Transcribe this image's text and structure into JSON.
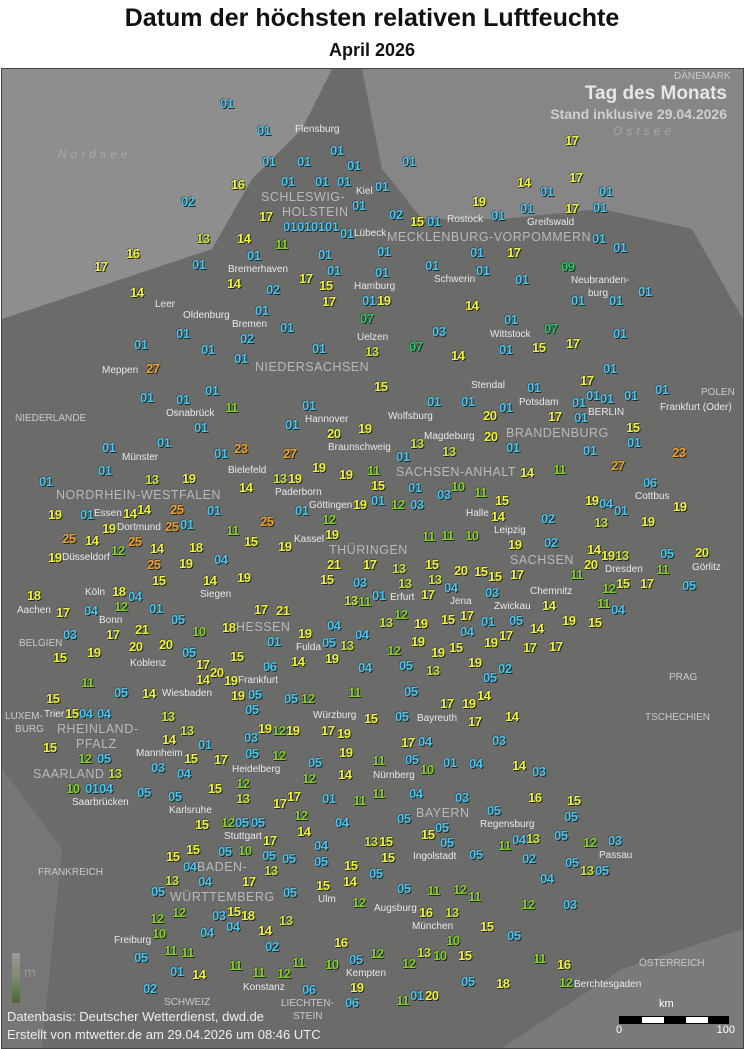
{
  "title": "Datum der höchsten relativen Luftfeuchte",
  "subtitle": "April 2026",
  "legend": {
    "title": "Tag des Monats",
    "subtitle": "Stand inklusive 29.04.2026"
  },
  "colors": {
    "days_01_06": "#4cc4f2",
    "days_07_09": "#2ec86a",
    "days_10_12": "#86cf2a",
    "day_13": "#cde23c",
    "days_14_21": "#f3f23a",
    "days_23_27": "#f0a032"
  },
  "sea_labels": [
    "Nordsee",
    "Ostsee"
  ],
  "regions": [
    "SCHLESWIG-",
    "HOLSTEIN",
    "MECKLENBURG-VORPOMMERN",
    "NIEDERSACHSEN",
    "BRANDENBURG",
    "SACHSEN-ANHALT",
    "NORDRHEIN-WESTFALEN",
    "THÜRINGEN",
    "SACHSEN",
    "HESSEN",
    "RHEINLAND-",
    "PFALZ",
    "SAARLAND",
    "BAYERN",
    "BADEN-",
    "WÜRTTEMBERG"
  ],
  "countries": [
    "DÄNEMARK",
    "POLEN",
    "NIEDERLANDE",
    "BELGIEN",
    "LUXEM-",
    "BURG",
    "FRANKREICH",
    "TSCHECHIEN",
    "PRAG",
    "ÖSTERREICH",
    "SCHWEIZ",
    "LIECHTEN-",
    "STEIN"
  ],
  "cities": [
    "Flensburg",
    "Kiel",
    "Lübeck",
    "Rostock",
    "Greifswald",
    "Schwerin",
    "Neubranden-",
    "burg",
    "Hamburg",
    "Bremerhaven",
    "Bremen",
    "Oldenburg",
    "Leer",
    "Meppen",
    "Uelzen",
    "Wittstock",
    "Stendal",
    "Potsdam",
    "BERLIN",
    "Frankfurt (Oder)",
    "Wolfsburg",
    "Osnabrück",
    "Hannover",
    "Braunschweig",
    "Magdeburg",
    "Münster",
    "Bielefeld",
    "Paderborn",
    "Göttingen",
    "Essen",
    "Dortmund",
    "Düsseldorf",
    "Kassel",
    "Halle",
    "Leipzig",
    "Cottbus",
    "Dresden",
    "Görlitz",
    "Köln",
    "Aachen",
    "Bonn",
    "Siegen",
    "Erfurt",
    "Jena",
    "Zwickau",
    "Chemnitz",
    "Fulda",
    "Koblenz",
    "Wiesbaden",
    "Frankfurt",
    "Trier",
    "Würzburg",
    "Bayreuth",
    "Mannheim",
    "Heidelberg",
    "Nürnberg",
    "Saarbrücken",
    "Karlsruhe",
    "Regensburg",
    "Stuttgart",
    "Ingolstadt",
    "Passau",
    "Ulm",
    "Augsburg",
    "München",
    "Freiburg",
    "Kempten",
    "Konstanz",
    "Berchtesgaden"
  ],
  "stations": [
    "01",
    "01",
    "17",
    "01",
    "01",
    "01",
    "01",
    "01",
    "17",
    "14",
    "16",
    "01",
    "01",
    "01",
    "01",
    "01",
    "01",
    "01",
    "02",
    "19",
    "01",
    "17",
    "01",
    "17",
    "01",
    "01",
    "01",
    "01",
    "02",
    "01",
    "01",
    "15",
    "01",
    "01",
    "13",
    "14",
    "01",
    "11",
    "01",
    "01",
    "17",
    "16",
    "17",
    "01",
    "01",
    "01",
    "01",
    "17",
    "01",
    "09",
    "01",
    "01",
    "14",
    "17",
    "01",
    "02",
    "15",
    "14",
    "19",
    "01",
    "01",
    "01",
    "01",
    "14",
    "01",
    "07",
    "01",
    "01",
    "07",
    "01",
    "02",
    "01",
    "03",
    "01",
    "01",
    "01",
    "07",
    "13",
    "01",
    "15",
    "17",
    "14",
    "01",
    "27",
    "01",
    "17",
    "15",
    "01",
    "01",
    "01",
    "01",
    "01",
    "01",
    "01",
    "01",
    "11",
    "01",
    "01",
    "01",
    "01",
    "01",
    "20",
    "17",
    "01",
    "01",
    "01",
    "20",
    "19",
    "20",
    "15",
    "01",
    "23",
    "13",
    "13",
    "01",
    "01",
    "01",
    "01",
    "01",
    "27",
    "23",
    "01",
    "19",
    "19",
    "27",
    "01",
    "14",
    "11",
    "11",
    "13",
    "19",
    "19",
    "01",
    "06",
    "15",
    "01",
    "13",
    "14",
    "01",
    "03",
    "11",
    "15",
    "10",
    "19",
    "01",
    "25",
    "12",
    "03",
    "19",
    "01",
    "01",
    "19",
    "19",
    "01",
    "14",
    "14",
    "25",
    "12",
    "19",
    "19",
    "11",
    "14",
    "02",
    "15",
    "19",
    "25",
    "25",
    "14",
    "19",
    "11",
    "11",
    "10",
    "12",
    "14",
    "18",
    "25",
    "01",
    "19",
    "04",
    "19",
    "02",
    "21",
    "17",
    "19",
    "25",
    "20",
    "11",
    "19",
    "15",
    "15",
    "15",
    "20",
    "17",
    "15",
    "15",
    "03",
    "13",
    "13",
    "15",
    "13",
    "17",
    "04",
    "01",
    "13",
    "11",
    "03",
    "14",
    "12",
    "04",
    "04",
    "18",
    "18",
    "14",
    "17",
    "04",
    "12",
    "01",
    "05",
    "17",
    "21",
    "10",
    "18",
    "03",
    "17",
    "21",
    "01",
    "19",
    "13",
    "12",
    "19",
    "15",
    "17",
    "01",
    "05",
    "14",
    "19",
    "15",
    "04",
    "19",
    "04",
    "05",
    "13",
    "12",
    "15",
    "19",
    "19",
    "15",
    "04",
    "19",
    "17",
    "17",
    "17",
    "19",
    "20",
    "20",
    "05",
    "15",
    "14",
    "06",
    "19",
    "04",
    "05",
    "13",
    "19",
    "02",
    "05",
    "11",
    "17",
    "20",
    "14",
    "19",
    "19",
    "05",
    "05",
    "14",
    "15",
    "05",
    "12",
    "11",
    "05",
    "17",
    "19",
    "14",
    "14",
    "05",
    "04",
    "15",
    "04",
    "13",
    "15",
    "05",
    "17",
    "19",
    "19",
    "17",
    "19",
    "13",
    "01",
    "14",
    "03",
    "03",
    "15",
    "12",
    "05",
    "12",
    "19",
    "17",
    "04",
    "05",
    "17",
    "15",
    "12",
    "05",
    "05",
    "14",
    "11",
    "10",
    "01",
    "04",
    "14",
    "03",
    "10",
    "01",
    "04",
    "13",
    "03",
    "04",
    "12",
    "05",
    "05",
    "15",
    "12",
    "13",
    "17",
    "17",
    "01",
    "11",
    "11",
    "04",
    "03",
    "16",
    "15",
    "05",
    "15",
    "12",
    "05",
    "05",
    "12",
    "14",
    "04",
    "05",
    "05",
    "15",
    "05",
    "05",
    "04",
    "05",
    "13",
    "12",
    "03",
    "13",
    "15",
    "15",
    "10",
    "17",
    "05",
    "05",
    "05",
    "11",
    "02",
    "05",
    "13",
    "15",
    "15",
    "05",
    "05",
    "04",
    "15",
    "05",
    "04",
    "13",
    "14",
    "15",
    "04",
    "13",
    "05",
    "05",
    "17",
    "12",
    "11",
    "05",
    "12",
    "05",
    "11",
    "12",
    "15",
    "04",
    "03",
    "15",
    "12",
    "18",
    "03",
    "04",
    "12",
    "14",
    "13",
    "16",
    "13",
    "04",
    "10",
    "05",
    "10",
    "02",
    "16",
    "11",
    "11",
    "12",
    "13",
    "10",
    "15",
    "11",
    "16",
    "05",
    "11",
    "11",
    "10",
    "05",
    "12",
    "11",
    "12",
    "19",
    "01",
    "14",
    "05",
    "18",
    "12",
    "02",
    "06",
    "06",
    "01",
    "20",
    "11",
    "05",
    "20",
    "11",
    "17",
    "05",
    "14",
    "04",
    "13",
    "11",
    "13"
  ],
  "elevation_legend": {
    "unit": "m"
  },
  "scale": {
    "unit": "km",
    "min": "0",
    "max": "100"
  },
  "footer": {
    "source": "Datenbasis: Deutscher Wetterdienst, dwd.de",
    "created": "Erstellt von mtwetter.de am 29.04.2026 um 08:46 UTC"
  }
}
